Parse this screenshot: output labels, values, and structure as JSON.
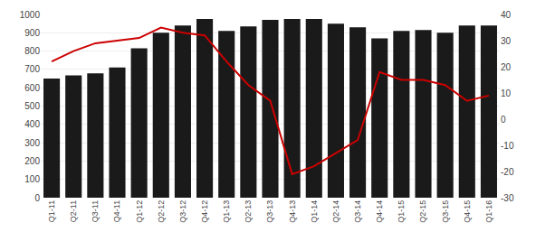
{
  "chart_data": {
    "type": "bar",
    "categories": [
      "Q1-11",
      "Q2-11",
      "Q3-11",
      "Q4-11",
      "Q1-12",
      "Q2-12",
      "Q3-12",
      "Q4-12",
      "Q1-13",
      "Q2-13",
      "Q3-13",
      "Q4-13",
      "Q1-14",
      "Q2-14",
      "Q3-14",
      "Q4-14",
      "Q1-15",
      "Q2-15",
      "Q3-15",
      "Q4-15",
      "Q1-16"
    ],
    "series": [
      {
        "type": "bar",
        "color": "#1a1a1a",
        "values": [
          650,
          668,
          678,
          710,
          815,
          900,
          940,
          975,
          910,
          935,
          970,
          975,
          975,
          950,
          930,
          870,
          910,
          915,
          900,
          940,
          940
        ]
      },
      {
        "type": "line",
        "color": "#cc0000",
        "axis": "y2",
        "values": [
          22,
          26,
          29,
          30,
          31,
          35,
          33,
          32,
          22,
          13,
          7,
          -21,
          -18,
          -13,
          -8,
          18,
          15,
          15,
          13,
          7,
          9
        ]
      }
    ],
    "ylim": [
      0,
      1000
    ],
    "yticks": [
      0,
      100,
      200,
      300,
      400,
      500,
      600,
      700,
      800,
      900,
      1000
    ],
    "y2lim": [
      -30,
      40
    ],
    "y2ticks": [
      -30,
      -20,
      -10,
      0,
      10,
      20,
      30,
      40
    ],
    "grid": true
  }
}
